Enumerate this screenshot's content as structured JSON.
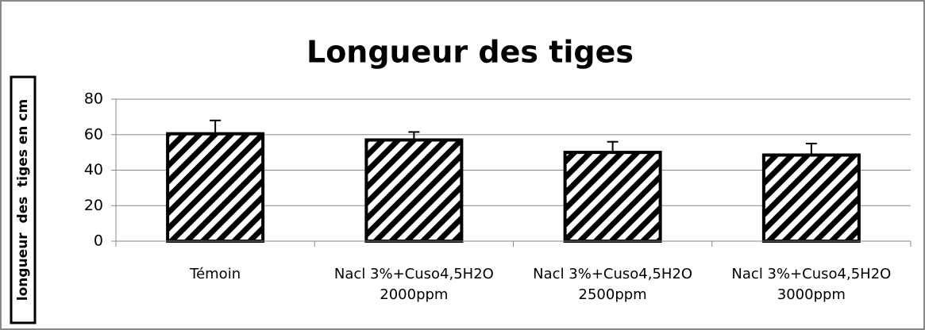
{
  "chart_data": {
    "type": "bar",
    "title": "Longueur des tiges",
    "y_label": "longueur  des  tiges en cm",
    "categories": [
      "Témoin",
      "Nacl 3%+Cuso4,5H2O 2000ppm",
      "Nacl 3%+Cuso4,5H2O 2500ppm",
      "Nacl 3%+Cuso4,5H2O 3000ppm"
    ],
    "values": [
      60.5,
      57,
      50,
      48.5
    ],
    "errors": [
      7.5,
      4.5,
      6,
      6.5
    ],
    "color": "#000000",
    "ylim": [
      0,
      80
    ],
    "yticks": [
      0,
      20,
      40,
      60,
      80
    ],
    "grid": true
  }
}
